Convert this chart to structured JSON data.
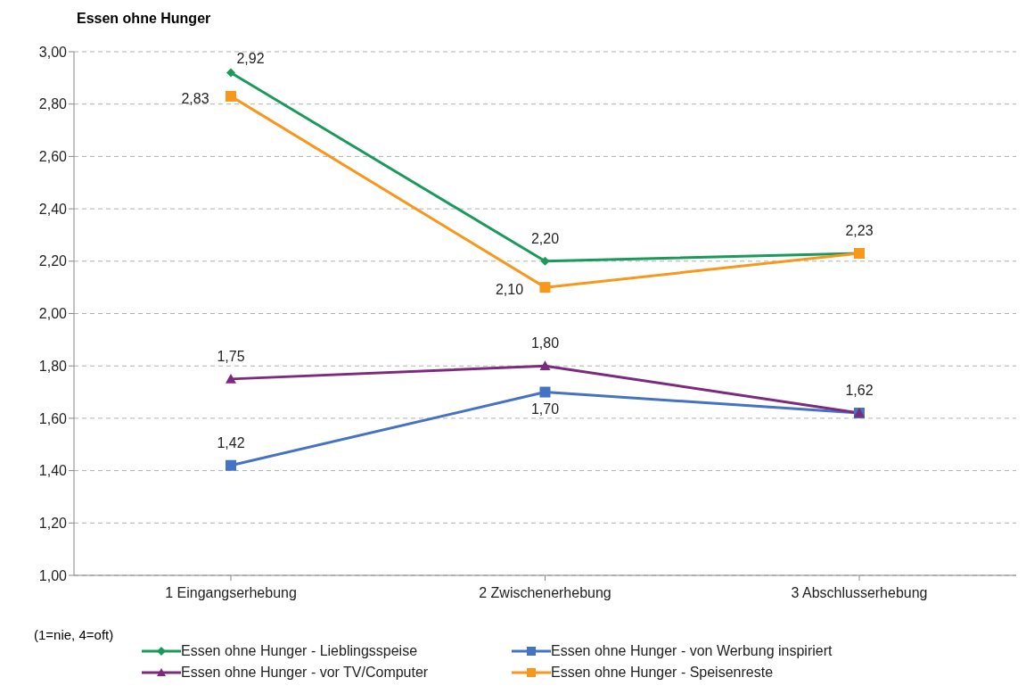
{
  "chart_data": {
    "type": "line",
    "title": "Essen ohne Hunger",
    "categories": [
      "1 Eingangserhebung",
      "2 Zwischenerhebung",
      "3 Abschlusserhebung"
    ],
    "series": [
      {
        "name": "Essen ohne Hunger - Lieblingsspeise",
        "color": "#1a9a5a",
        "marker": "diamond",
        "values": [
          2.92,
          2.2,
          2.23
        ],
        "value_labels": [
          "2,92",
          "2,20",
          null
        ]
      },
      {
        "name": "Essen ohne Hunger - von Werbung inspiriert",
        "color": "#4472c4",
        "marker": "square",
        "values": [
          1.42,
          1.7,
          1.62
        ],
        "value_labels": [
          "1,42",
          "1,70",
          null
        ]
      },
      {
        "name": "Essen ohne Hunger - vor TV/Computer",
        "color": "#7b2a7e",
        "marker": "triangle",
        "values": [
          1.75,
          1.8,
          1.62
        ],
        "value_labels": [
          "1,75",
          "1,80",
          "1,62"
        ]
      },
      {
        "name": "Essen ohne Hunger - Speisenreste",
        "color": "#f7981d",
        "marker": "square",
        "values": [
          2.83,
          2.1,
          2.23
        ],
        "value_labels": [
          "2,83",
          "2,10",
          "2,23"
        ]
      }
    ],
    "ylim": [
      1,
      3
    ],
    "yticks": [
      {
        "value": 1,
        "label": "1,00"
      },
      {
        "value": 1.2,
        "label": "1,20"
      },
      {
        "value": 1.4,
        "label": "1,40"
      },
      {
        "value": 1.6,
        "label": "1,60"
      },
      {
        "value": 1.8,
        "label": "1,80"
      },
      {
        "value": 2,
        "label": "2,00"
      },
      {
        "value": 2.2,
        "label": "2,20"
      },
      {
        "value": 2.4,
        "label": "2,40"
      },
      {
        "value": 2.6,
        "label": "2,60"
      },
      {
        "value": 2.8,
        "label": "2,80"
      },
      {
        "value": 3,
        "label": "3,00"
      }
    ],
    "grid": "y",
    "legend": "bottom",
    "line_style": "solid",
    "annotations": [
      "(1=nie, 4=oft)"
    ]
  }
}
